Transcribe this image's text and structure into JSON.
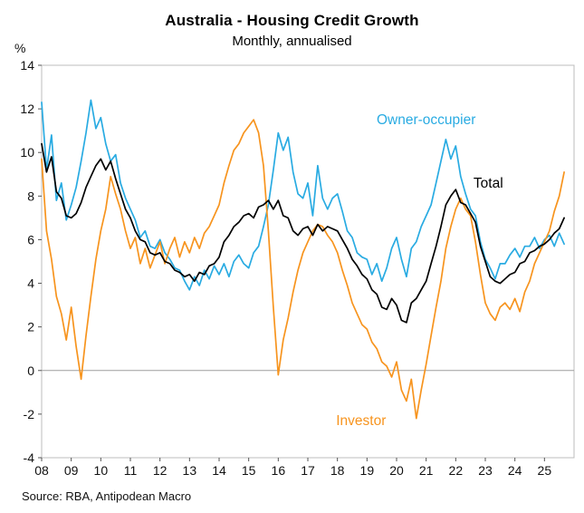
{
  "page": {
    "title": "Australia - Housing Credit Growth",
    "subtitle": "Monthly, annualised",
    "y_axis_unit": "%",
    "source": "Source: RBA, Antipodean Macro"
  },
  "chart_data": {
    "type": "line",
    "title": "Australia - Housing Credit Growth",
    "subtitle": "Monthly, annualised",
    "ylabel": "%",
    "xlabel": "",
    "ylim": [
      -4,
      14
    ],
    "y_ticks": [
      14,
      12,
      10,
      8,
      6,
      4,
      2,
      0,
      -2,
      -4
    ],
    "xlim": [
      2008,
      2026
    ],
    "x_tick_labels": [
      "08",
      "09",
      "10",
      "11",
      "12",
      "13",
      "14",
      "15",
      "16",
      "17",
      "18",
      "19",
      "20",
      "21",
      "22",
      "23",
      "24",
      "25"
    ],
    "x_start": 2008.0,
    "x_step": 0.1666667,
    "grid": false,
    "zero_line": true,
    "legend_position": "inline-annotations",
    "series": [
      {
        "name": "Owner-occupier",
        "color": "#29ABE2",
        "values": [
          12.3,
          9.2,
          10.8,
          7.8,
          8.6,
          6.9,
          7.6,
          8.4,
          9.6,
          10.9,
          12.4,
          11.1,
          11.6,
          10.4,
          9.6,
          9.9,
          8.6,
          7.9,
          7.4,
          6.9,
          6.1,
          6.4,
          5.7,
          5.6,
          6.0,
          5.4,
          5.1,
          4.7,
          4.6,
          4.1,
          3.7,
          4.3,
          3.9,
          4.6,
          4.2,
          4.8,
          4.4,
          4.9,
          4.3,
          5.0,
          5.3,
          4.9,
          4.7,
          5.4,
          5.7,
          6.6,
          7.6,
          9.2,
          10.9,
          10.1,
          10.7,
          9.1,
          8.1,
          7.9,
          8.6,
          7.1,
          9.4,
          7.9,
          7.4,
          7.9,
          8.1,
          7.3,
          6.4,
          6.1,
          5.4,
          5.2,
          5.1,
          4.4,
          4.9,
          4.1,
          4.7,
          5.6,
          6.1,
          5.1,
          4.3,
          5.6,
          5.9,
          6.6,
          7.1,
          7.6,
          8.6,
          9.6,
          10.6,
          9.7,
          10.3,
          8.9,
          8.1,
          7.4,
          7.1,
          5.9,
          5.1,
          4.7,
          4.2,
          4.9,
          4.9,
          5.3,
          5.6,
          5.2,
          5.7,
          5.7,
          6.1,
          5.6,
          6.0,
          6.2,
          5.7,
          6.3,
          5.8
        ]
      },
      {
        "name": "Investor",
        "color": "#F7941E",
        "values": [
          9.7,
          6.4,
          5.1,
          3.4,
          2.6,
          1.4,
          2.9,
          1.1,
          -0.4,
          1.6,
          3.4,
          5.1,
          6.4,
          7.4,
          8.9,
          8.1,
          7.4,
          6.4,
          5.6,
          6.1,
          4.9,
          5.6,
          4.7,
          5.3,
          5.9,
          4.9,
          5.6,
          6.1,
          5.2,
          5.9,
          5.4,
          6.1,
          5.6,
          6.3,
          6.6,
          7.1,
          7.6,
          8.6,
          9.4,
          10.1,
          10.4,
          10.9,
          11.2,
          11.5,
          10.9,
          9.4,
          6.4,
          2.9,
          -0.2,
          1.4,
          2.4,
          3.6,
          4.6,
          5.4,
          5.9,
          6.4,
          6.7,
          6.6,
          6.2,
          5.9,
          5.4,
          4.6,
          3.9,
          3.1,
          2.6,
          2.1,
          1.9,
          1.3,
          1.0,
          0.4,
          0.2,
          -0.3,
          0.4,
          -0.9,
          -1.4,
          -0.4,
          -2.2,
          -0.9,
          0.3,
          1.6,
          2.9,
          4.1,
          5.6,
          6.6,
          7.4,
          7.9,
          7.4,
          7.1,
          5.9,
          4.4,
          3.1,
          2.6,
          2.3,
          2.9,
          3.1,
          2.8,
          3.3,
          2.7,
          3.6,
          4.1,
          4.9,
          5.4,
          5.9,
          6.4,
          7.3,
          8.0,
          9.1
        ]
      },
      {
        "name": "Total",
        "color": "#000000",
        "values": [
          10.4,
          9.1,
          9.8,
          8.2,
          7.9,
          7.1,
          7.0,
          7.2,
          7.7,
          8.4,
          8.9,
          9.4,
          9.7,
          9.2,
          9.6,
          8.8,
          8.1,
          7.4,
          7.0,
          6.4,
          6.0,
          5.9,
          5.4,
          5.3,
          5.4,
          5.0,
          4.9,
          4.6,
          4.5,
          4.3,
          4.4,
          4.1,
          4.5,
          4.4,
          4.8,
          4.9,
          5.2,
          5.9,
          6.2,
          6.6,
          6.8,
          7.1,
          7.2,
          7.0,
          7.5,
          7.6,
          7.8,
          7.4,
          7.8,
          7.1,
          7.0,
          6.4,
          6.2,
          6.5,
          6.6,
          6.2,
          6.7,
          6.4,
          6.6,
          6.5,
          6.4,
          6.0,
          5.6,
          5.1,
          4.8,
          4.4,
          4.2,
          3.7,
          3.5,
          2.9,
          2.8,
          3.3,
          3.0,
          2.3,
          2.2,
          3.1,
          3.3,
          3.7,
          4.1,
          4.9,
          5.7,
          6.6,
          7.6,
          8.0,
          8.3,
          7.7,
          7.6,
          7.2,
          6.8,
          5.7,
          5.0,
          4.3,
          4.1,
          4.0,
          4.2,
          4.4,
          4.5,
          4.9,
          5.0,
          5.4,
          5.5,
          5.7,
          5.8,
          6.0,
          6.3,
          6.5,
          7.0
        ]
      }
    ],
    "annotations": [
      {
        "label": "Owner-occupier",
        "x": 2021.0,
        "y": 11.5,
        "color": "#29ABE2",
        "anchor": "middle"
      },
      {
        "label": "Total",
        "x": 2022.6,
        "y": 8.6,
        "color": "#000000",
        "anchor": "start"
      },
      {
        "label": "Investor",
        "x": 2018.8,
        "y": -2.3,
        "color": "#F7941E",
        "anchor": "middle"
      }
    ]
  }
}
